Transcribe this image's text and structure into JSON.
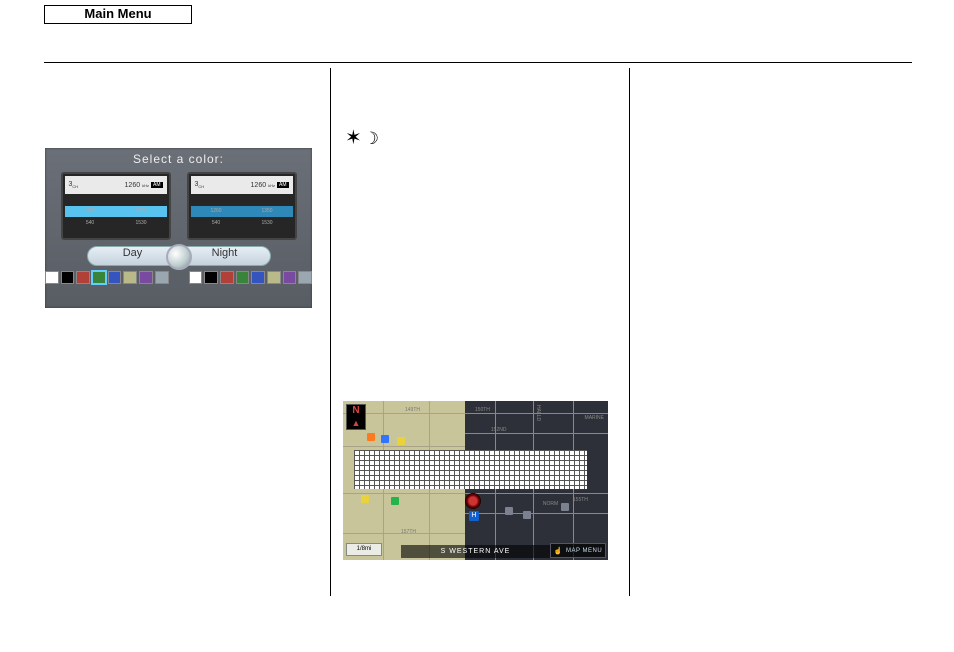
{
  "header": {
    "main_menu": "Main Menu"
  },
  "panel": {
    "title": "Select a color:",
    "preview": {
      "am_label": "AM",
      "freq_main": "1260",
      "freq_unit": "kHz",
      "preset_index": "3",
      "presets_row2": [
        "1260",
        "1350"
      ],
      "presets_row3": [
        "540",
        "1530"
      ]
    },
    "tabs": {
      "day": "Day",
      "night": "Night"
    },
    "swatches": [
      {
        "c": "#ffffff"
      },
      {
        "c": "#000000"
      },
      {
        "c": "#b04038"
      },
      {
        "c": "#38843a"
      },
      {
        "c": "#3454c0"
      },
      {
        "c": "#b9b98a"
      },
      {
        "c": "#7a4aa0"
      },
      {
        "c": "#9aa6b0"
      },
      {
        "c": "#ffffff"
      },
      {
        "c": "#000000"
      },
      {
        "c": "#b04038"
      },
      {
        "c": "#38843a"
      },
      {
        "c": "#3454c0"
      },
      {
        "c": "#b9b98a"
      },
      {
        "c": "#7a4aa0"
      },
      {
        "c": "#9aa6b0"
      }
    ]
  },
  "glyphs": {
    "sun": "✶",
    "moon": "☽"
  },
  "map": {
    "scale": "1/8mi",
    "road_name": "S WESTERN AVE",
    "map_menu": "MAP MENU",
    "compass": "N",
    "labels": {
      "l149": "149TH",
      "l150": "150TH",
      "l152": "152ND",
      "l155": "155TH",
      "l157": "157TH",
      "marine": "MARINE",
      "halld": "HALLD",
      "norm": "NORM"
    },
    "poi_colors": {
      "blue": "#2e74ff",
      "orange": "#ff7a1e",
      "yellow": "#e9d23c",
      "green": "#25b34b",
      "hondaH": "#1060d0",
      "grey": "#7b818e"
    }
  }
}
